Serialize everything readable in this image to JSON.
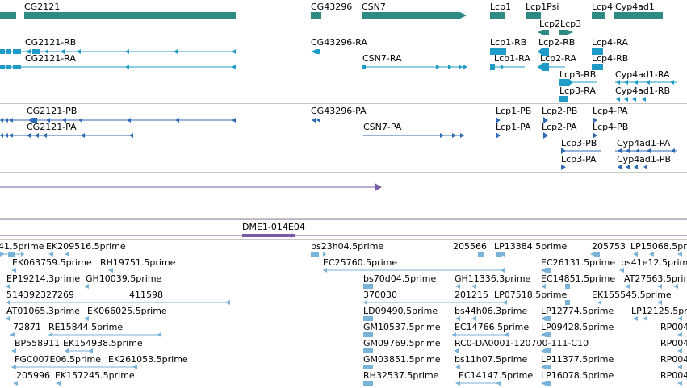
{
  "colors": {
    "gene": "#2e8b84",
    "rna": "#1e9bc6",
    "protein": "#2d6ab5",
    "contig": "#7b5ba6",
    "est": "#7ab3d9",
    "separator": "#c7c7c7"
  },
  "tracks": {
    "genes": {
      "labels": [
        "CG2121",
        "CG43296",
        "CSN7",
        "Lcp1",
        "Lcp1Psi",
        "Lcp4",
        "Cyp4ad1",
        "Lcp2",
        "Lcp3"
      ]
    },
    "mrna": {
      "labels": [
        "CG2121-RB",
        "CG2121-RA",
        "CG43296-RA",
        "CSN7-RA",
        "Lcp1-RB",
        "Lcp1-RA",
        "Lcp2-RB",
        "Lcp2-RA",
        "Lcp4-RA",
        "Lcp4-RB",
        "Lcp3-RB",
        "Lcp3-RA",
        "Cyp4ad1-RA",
        "Cyp4ad1-RB"
      ]
    },
    "proteins": {
      "labels": [
        "CG2121-PB",
        "CG2121-PA",
        "CG43296-PA",
        "CSN7-PA",
        "Lcp1-PB",
        "Lcp1-PA",
        "Lcp2-PB",
        "Lcp2-PA",
        "Lcp4-PA",
        "Lcp4-PB",
        "Lcp3-PB",
        "Lcp3-PA",
        "Cyp4ad1-PA",
        "Cyp4ad1-PB"
      ]
    },
    "clones": {
      "labels": [
        "DME1-014E04"
      ]
    },
    "ests": {
      "labels": [
        "41.5prime",
        "EK209516.5prime",
        "bs23h04.5prime",
        "205566",
        "LP13384.5prime",
        "205753",
        "LP15068.5prime",
        "EK063759.5prime",
        "RH19751.5prime",
        "EC25760.5prime",
        "EC26131.5prime",
        "bs41e12.5prime",
        "EP19214.3prime",
        "GH10039.5prime",
        "bs70d04.5prime",
        "GH11336.3prime",
        "EC14851.5prime",
        "AT27563.5prime",
        "514392327269",
        "411598",
        "370030",
        "201215",
        "LP07518.5prime",
        "EK155545.5prime",
        "AT01065.3prime",
        "EK066025.5prime",
        "LD09490.5prime",
        "bs44h06.3prime",
        "LP12774.5prime",
        "LP12125.5prime",
        "72871",
        "RE15844.5prime",
        "GM10537.5prime",
        "EC14766.5prime",
        "LP09428.5prime",
        "RP004",
        "BP558911",
        "EK154938.5prime",
        "GM09769.5prime",
        "RC0-DA0001-120700-111-C10",
        "RP004",
        "FGC007E06.5prime",
        "EK261053.5prime",
        "GM03851.5prime",
        "bs11h07.5prime",
        "LP11377.5prime",
        "RP004",
        "205996",
        "EK157245.5prime",
        "RH32537.5prime",
        "EC14147.5prime",
        "LP16078.5prime",
        "RP004"
      ]
    }
  }
}
